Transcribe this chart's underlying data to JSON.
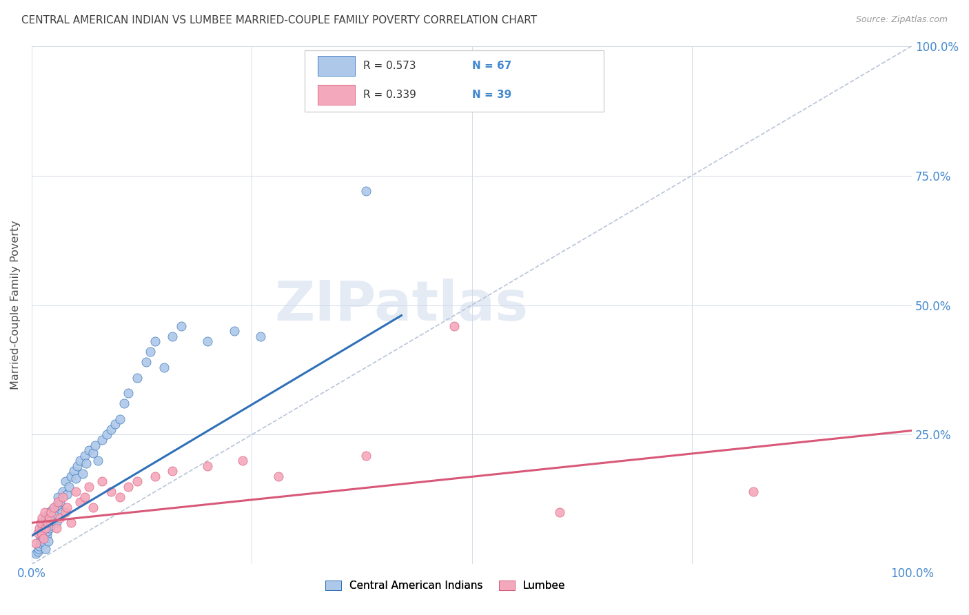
{
  "title": "CENTRAL AMERICAN INDIAN VS LUMBEE MARRIED-COUPLE FAMILY POVERTY CORRELATION CHART",
  "source": "Source: ZipAtlas.com",
  "ylabel": "Married-Couple Family Poverty",
  "xlim": [
    0,
    1
  ],
  "ylim": [
    0,
    1
  ],
  "xtick_positions": [
    0,
    0.25,
    0.5,
    0.75,
    1.0
  ],
  "xticklabels": [
    "0.0%",
    "",
    "",
    "",
    "100.0%"
  ],
  "ytick_positions": [
    0.0,
    0.25,
    0.5,
    0.75,
    1.0
  ],
  "yticklabels_right": [
    "",
    "25.0%",
    "50.0%",
    "75.0%",
    "100.0%"
  ],
  "legend_labels": [
    "Central American Indians",
    "Lumbee"
  ],
  "R_blue": 0.573,
  "N_blue": 67,
  "R_pink": 0.339,
  "N_pink": 39,
  "color_blue": "#adc8e8",
  "color_pink": "#f4a8bc",
  "line_blue": "#3070b8",
  "line_pink": "#d85878",
  "line_ref": "#b8c4d8",
  "title_color": "#404040",
  "axis_tick_color": "#4488cc",
  "watermark_text": "ZIPatlas",
  "blue_points_x": [
    0.005,
    0.007,
    0.008,
    0.009,
    0.01,
    0.01,
    0.011,
    0.011,
    0.012,
    0.012,
    0.013,
    0.013,
    0.014,
    0.015,
    0.015,
    0.016,
    0.016,
    0.017,
    0.018,
    0.018,
    0.019,
    0.02,
    0.02,
    0.021,
    0.022,
    0.023,
    0.025,
    0.026,
    0.028,
    0.03,
    0.03,
    0.032,
    0.035,
    0.035,
    0.038,
    0.04,
    0.042,
    0.045,
    0.048,
    0.05,
    0.052,
    0.055,
    0.058,
    0.06,
    0.062,
    0.065,
    0.07,
    0.072,
    0.075,
    0.08,
    0.085,
    0.09,
    0.095,
    0.1,
    0.105,
    0.11,
    0.12,
    0.13,
    0.135,
    0.14,
    0.15,
    0.16,
    0.17,
    0.2,
    0.23,
    0.26,
    0.38
  ],
  "blue_points_y": [
    0.02,
    0.025,
    0.03,
    0.035,
    0.04,
    0.05,
    0.055,
    0.065,
    0.07,
    0.08,
    0.045,
    0.075,
    0.085,
    0.04,
    0.06,
    0.03,
    0.09,
    0.055,
    0.065,
    0.095,
    0.045,
    0.07,
    0.1,
    0.085,
    0.075,
    0.105,
    0.095,
    0.11,
    0.08,
    0.115,
    0.13,
    0.12,
    0.1,
    0.14,
    0.16,
    0.135,
    0.15,
    0.17,
    0.18,
    0.165,
    0.19,
    0.2,
    0.175,
    0.21,
    0.195,
    0.22,
    0.215,
    0.23,
    0.2,
    0.24,
    0.25,
    0.26,
    0.27,
    0.28,
    0.31,
    0.33,
    0.36,
    0.39,
    0.41,
    0.43,
    0.38,
    0.44,
    0.46,
    0.43,
    0.45,
    0.44,
    0.72
  ],
  "pink_points_x": [
    0.005,
    0.007,
    0.009,
    0.01,
    0.011,
    0.012,
    0.013,
    0.015,
    0.016,
    0.018,
    0.02,
    0.022,
    0.025,
    0.028,
    0.03,
    0.032,
    0.035,
    0.038,
    0.04,
    0.045,
    0.05,
    0.055,
    0.06,
    0.065,
    0.07,
    0.08,
    0.09,
    0.1,
    0.11,
    0.12,
    0.14,
    0.16,
    0.2,
    0.24,
    0.28,
    0.38,
    0.48,
    0.6,
    0.82
  ],
  "pink_points_y": [
    0.04,
    0.06,
    0.07,
    0.08,
    0.06,
    0.09,
    0.05,
    0.1,
    0.07,
    0.08,
    0.09,
    0.1,
    0.11,
    0.07,
    0.12,
    0.09,
    0.13,
    0.1,
    0.11,
    0.08,
    0.14,
    0.12,
    0.13,
    0.15,
    0.11,
    0.16,
    0.14,
    0.13,
    0.15,
    0.16,
    0.17,
    0.18,
    0.19,
    0.2,
    0.17,
    0.21,
    0.46,
    0.1,
    0.14
  ],
  "blue_line_x0": 0.0,
  "blue_line_y0": 0.055,
  "blue_line_x1": 0.42,
  "blue_line_y1": 0.48,
  "pink_line_x0": 0.0,
  "pink_line_y0": 0.08,
  "pink_line_x1": 1.0,
  "pink_line_y1": 0.258
}
